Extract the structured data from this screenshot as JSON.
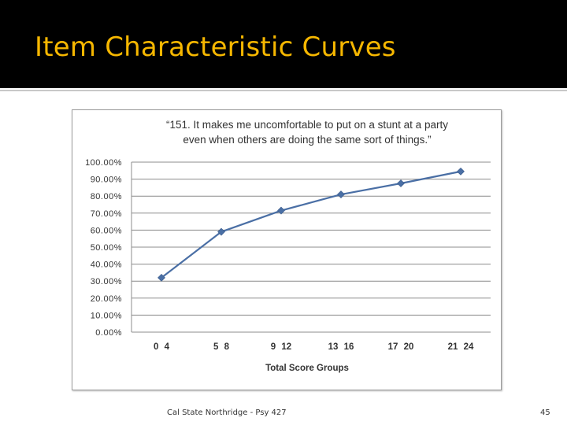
{
  "slide": {
    "title": "Item Characteristic Curves",
    "footer": "Cal State Northridge - Psy 427",
    "page_number": "45",
    "title_color": "#f6b700"
  },
  "chart_data": {
    "type": "line",
    "title_lines": [
      "“151. It makes me uncomfortable to put on a stunt at a party",
      "even when others are doing the same sort of things.”"
    ],
    "xlabel": "Total Score Groups",
    "ylabel": "",
    "categories": [
      "0 4",
      "5 8",
      "9 12",
      "13 16",
      "17 20",
      "21 24"
    ],
    "series": [
      {
        "values": [
          32,
          59,
          71.5,
          81,
          87.5,
          94.5
        ],
        "color": "#4a6fa5"
      }
    ],
    "ylim": [
      0,
      100
    ],
    "yticks": [
      "0.00%",
      "10.00%",
      "20.00%",
      "30.00%",
      "40.00%",
      "50.00%",
      "60.00%",
      "70.00%",
      "80.00%",
      "90.00%",
      "100.00%"
    ],
    "grid": true,
    "marker": "diamond"
  }
}
